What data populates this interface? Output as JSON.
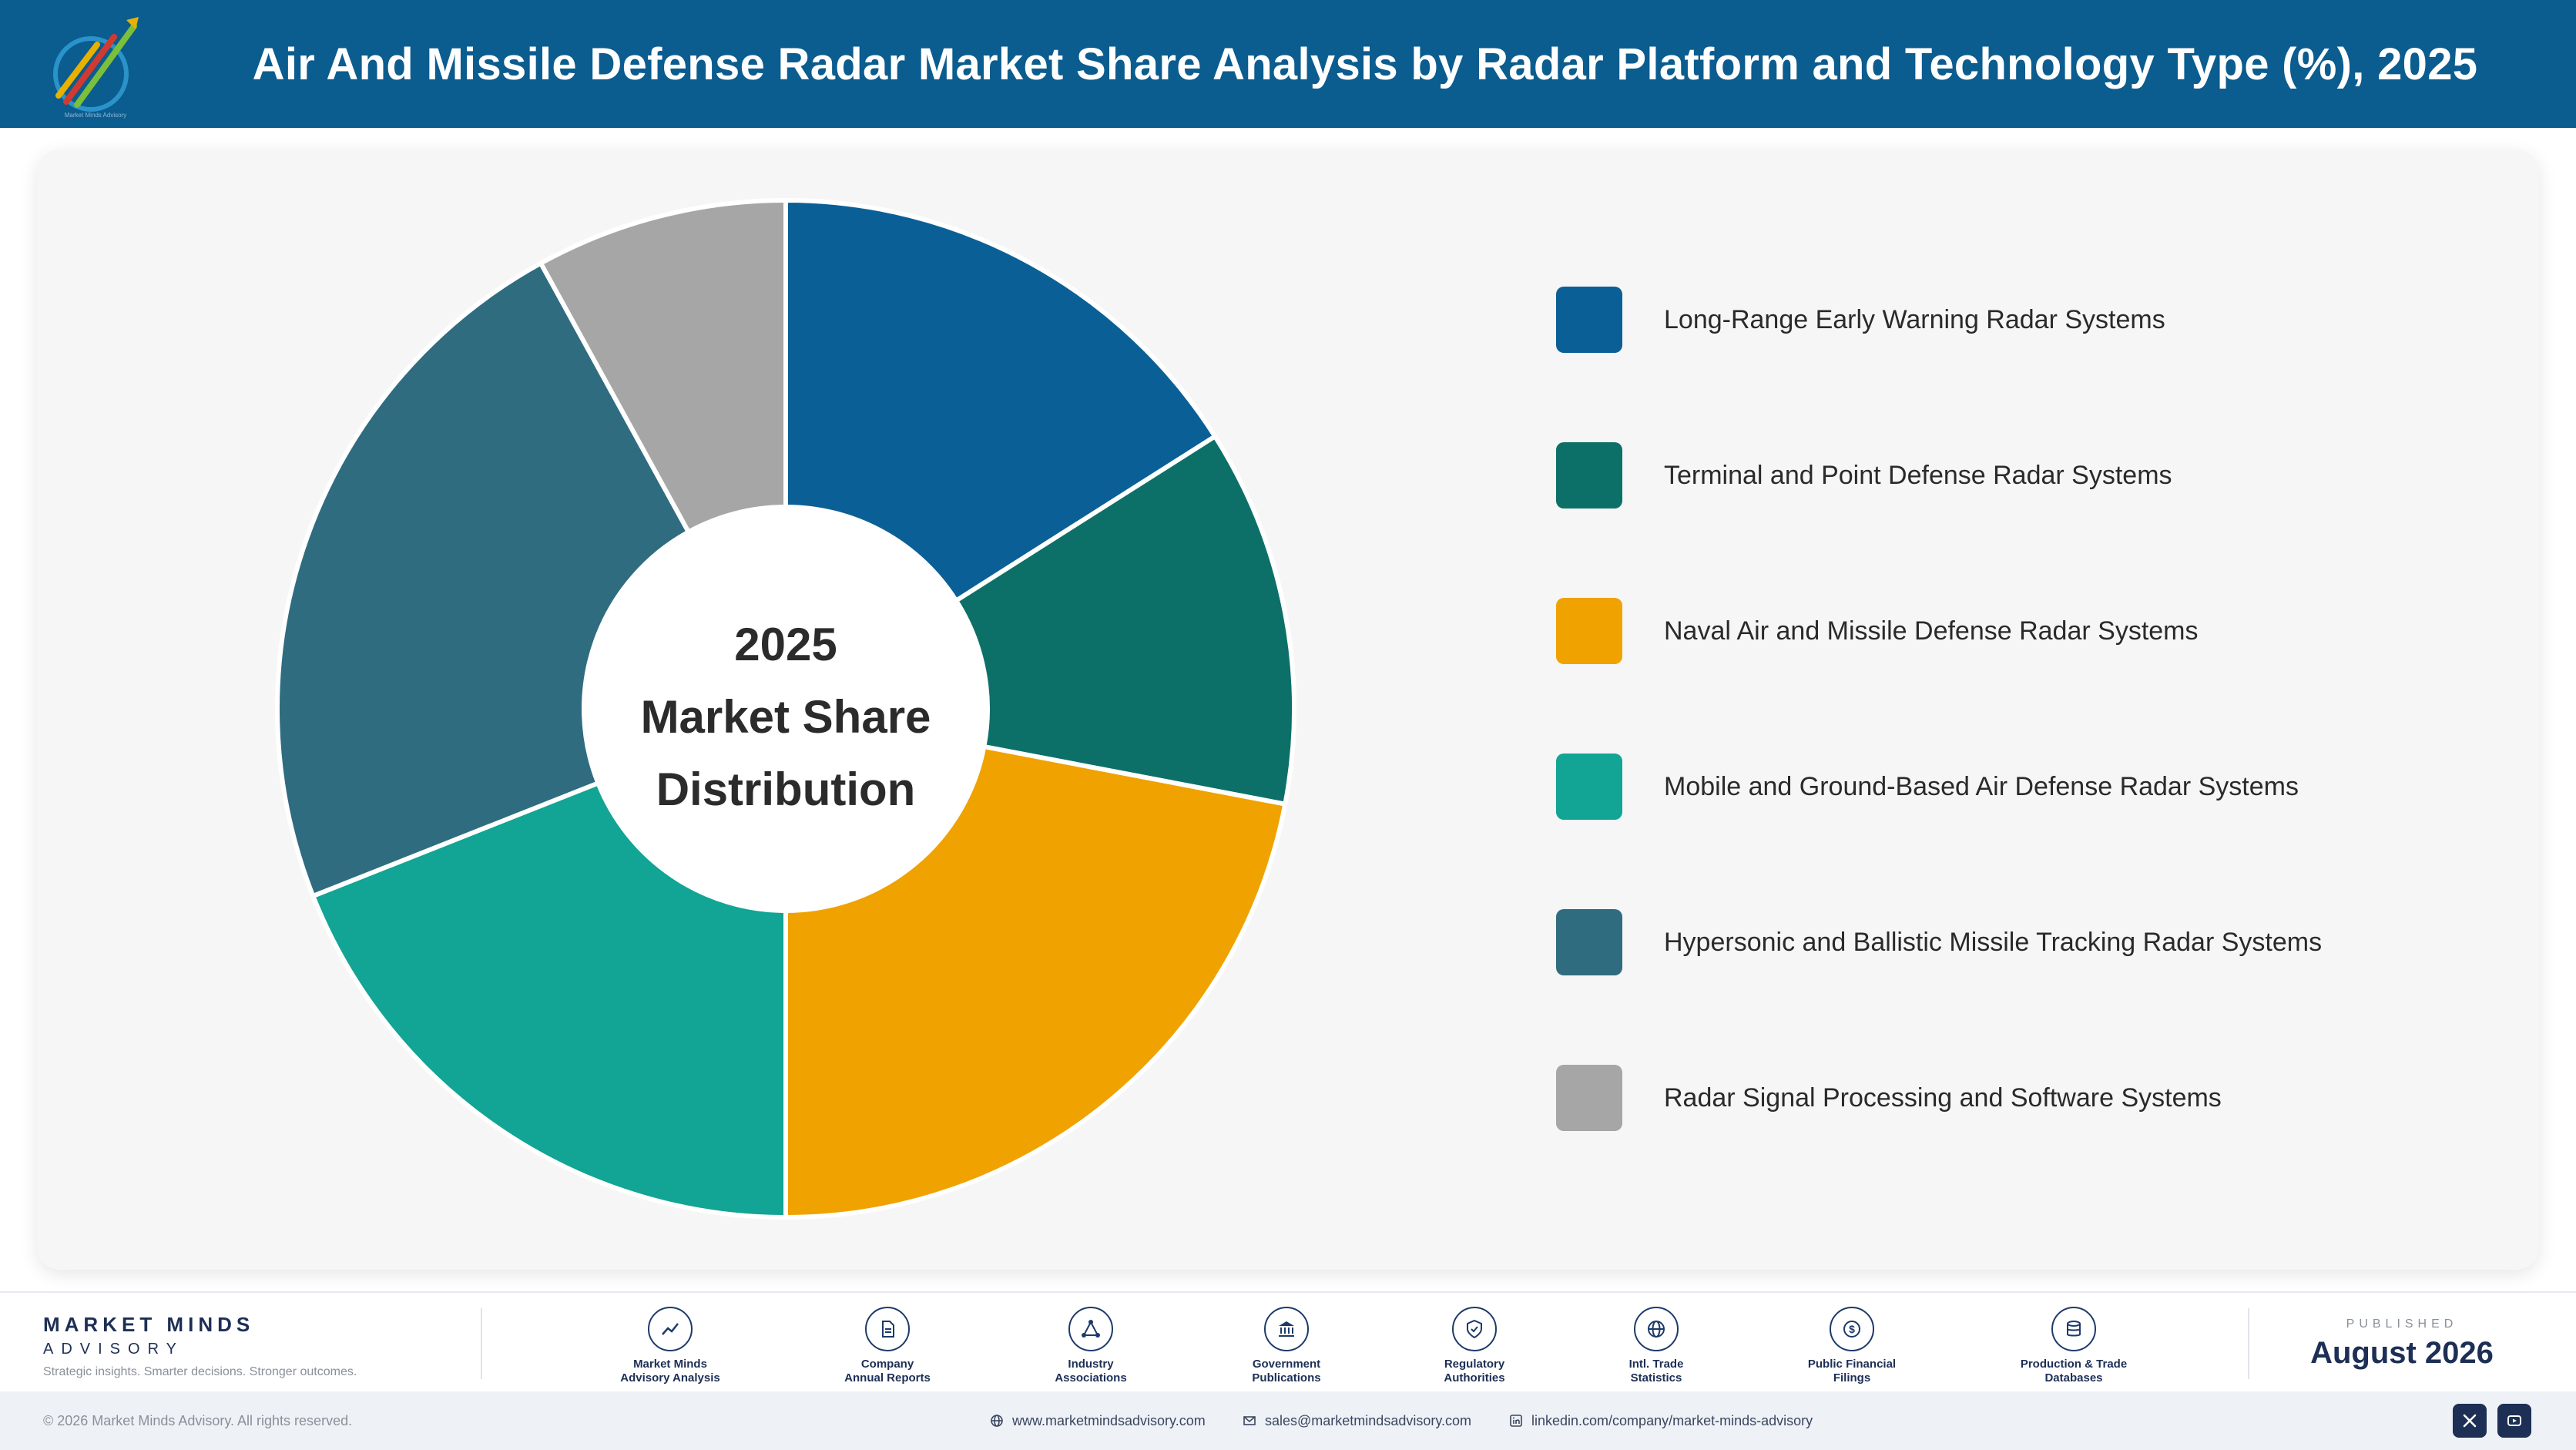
{
  "header": {
    "title": "Air And Missile Defense Radar Market Share Analysis by Radar Platform and Technology Type (%), 2025"
  },
  "chart_data": {
    "type": "pie",
    "title": "Air And Missile Defense Radar Market Share Analysis by Radar Platform and Technology Type (%), 2025",
    "center_label": [
      "2025",
      "Market Share",
      "Distribution"
    ],
    "legend_position": "right",
    "categories": [
      "Long-Range Early Warning Radar Systems",
      "Terminal and Point Defense Radar Systems",
      "Naval Air and Missile Defense Radar Systems",
      "Mobile and Ground-Based Air Defense Radar Systems",
      "Hypersonic and Ballistic Missile Tracking Radar Systems",
      "Radar Signal Processing and Software Systems"
    ],
    "values": [
      16,
      12,
      22,
      19,
      23,
      8
    ],
    "colors": [
      "#0a6096",
      "#0d7068",
      "#f0a200",
      "#12a494",
      "#2f6c80",
      "#a6a6a6"
    ]
  },
  "footer": {
    "brand_name": "MARKET MINDS",
    "brand_sub": "ADVISORY",
    "brand_tagline": "Strategic insights. Smarter decisions. Stronger outcomes.",
    "sources": [
      {
        "line1": "Market Minds",
        "line2": "Advisory Analysis",
        "icon": "trend-icon"
      },
      {
        "line1": "Company",
        "line2": "Annual Reports",
        "icon": "document-icon"
      },
      {
        "line1": "Industry",
        "line2": "Associations",
        "icon": "network-icon"
      },
      {
        "line1": "Government",
        "line2": "Publications",
        "icon": "government-icon"
      },
      {
        "line1": "Regulatory",
        "line2": "Authorities",
        "icon": "shield-check-icon"
      },
      {
        "line1": "Intl. Trade",
        "line2": "Statistics",
        "icon": "globe-icon"
      },
      {
        "line1": "Public Financial",
        "line2": "Filings",
        "icon": "dollar-icon"
      },
      {
        "line1": "Production & Trade",
        "line2": "Databases",
        "icon": "database-icon"
      }
    ],
    "published_label": "PUBLISHED",
    "published_date": "August 2026"
  },
  "bottom_bar": {
    "copyright": "© 2026 Market Minds Advisory. All rights reserved.",
    "website": "www.marketmindsadvisory.com",
    "email": "sales@marketmindsadvisory.com",
    "linkedin": "linkedin.com/company/market-minds-advisory"
  }
}
